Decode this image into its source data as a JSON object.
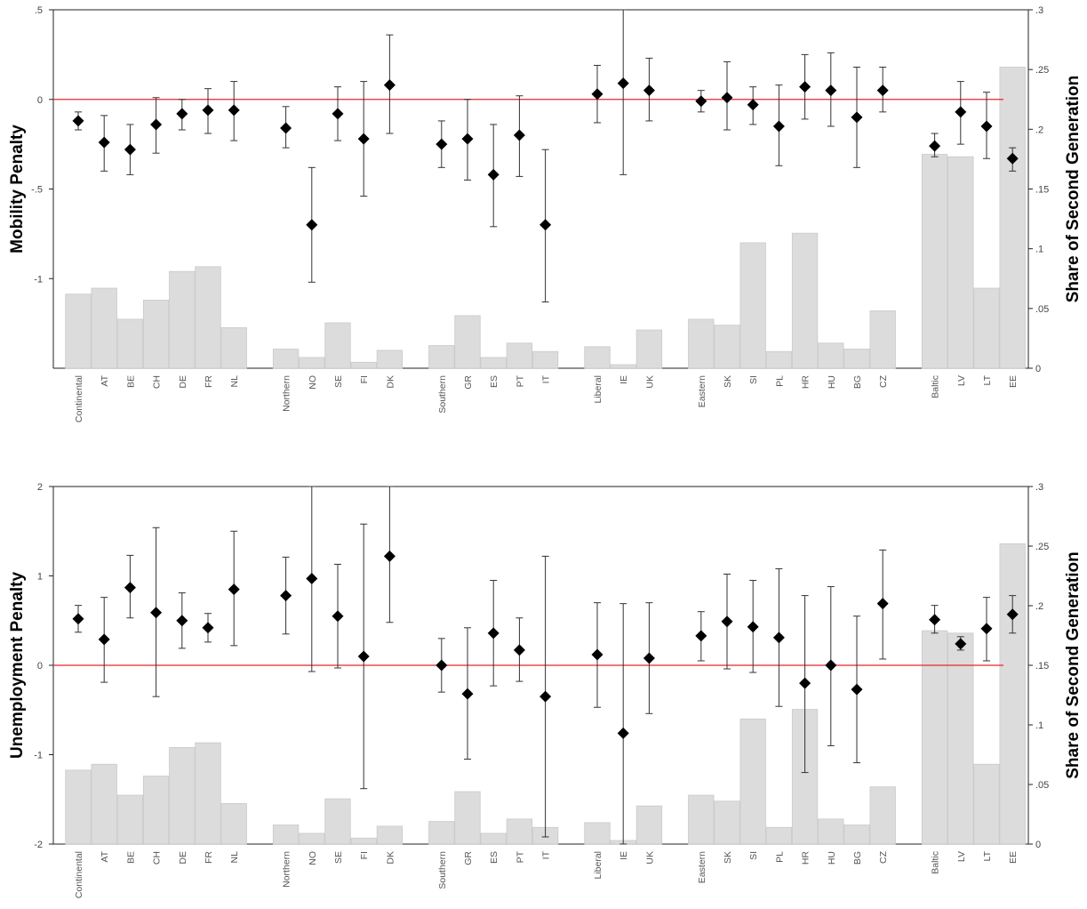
{
  "chart_data": [
    {
      "type": "bar+errorbar",
      "ylabel": "Mobility Penalty",
      "y2label": "Share of Second Generation",
      "ylim": [
        -1.5,
        0.5
      ],
      "y2lim": [
        0,
        0.3
      ],
      "yticks": [
        ".5",
        "0",
        "-.5",
        "-1"
      ],
      "yticks_values": [
        0.5,
        0,
        -0.5,
        -1
      ],
      "y2ticks": [
        ".3",
        ".25",
        ".2",
        ".15",
        ".1",
        ".05",
        "0"
      ],
      "y2ticks_values": [
        0.3,
        0.25,
        0.2,
        0.15,
        0.1,
        0.05,
        0
      ],
      "reference_line": 0,
      "reference_color": "#e8252b",
      "bar_color": "#dcdcdc",
      "marker": "diamond",
      "groups": [
        {
          "categories": [
            "Continental",
            "AT",
            "BE",
            "CH",
            "DE",
            "FR",
            "NL"
          ],
          "share": [
            0.062,
            0.067,
            0.041,
            0.057,
            0.081,
            0.085,
            0.034
          ],
          "est": [
            -0.12,
            -0.24,
            -0.28,
            -0.14,
            -0.08,
            -0.06,
            -0.06
          ],
          "lo": [
            -0.17,
            -0.4,
            -0.42,
            -0.3,
            -0.17,
            -0.19,
            -0.23
          ],
          "hi": [
            -0.07,
            -0.09,
            -0.14,
            0.01,
            0,
            0.06,
            0.1
          ]
        },
        {
          "categories": [
            "Northern",
            "NO",
            "SE",
            "FI",
            "DK"
          ],
          "share": [
            0.016,
            0.009,
            0.038,
            0.005,
            0.015
          ],
          "est": [
            -0.16,
            -0.7,
            -0.08,
            -0.22,
            0.08
          ],
          "lo": [
            -0.27,
            -1.02,
            -0.23,
            -0.54,
            -0.19
          ],
          "hi": [
            -0.04,
            -0.38,
            0.07,
            0.1,
            0.36
          ]
        },
        {
          "categories": [
            "Southern",
            "GR",
            "ES",
            "PT",
            "IT"
          ],
          "share": [
            0.019,
            0.044,
            0.009,
            0.021,
            0.014
          ],
          "est": [
            -0.25,
            -0.22,
            -0.42,
            -0.2,
            -0.7
          ],
          "lo": [
            -0.38,
            -0.45,
            -0.71,
            -0.43,
            -1.13
          ],
          "hi": [
            -0.12,
            0,
            -0.14,
            0.02,
            -0.28
          ]
        },
        {
          "categories": [
            "Liberal",
            "IE",
            "UK"
          ],
          "share": [
            0.018,
            0.003,
            0.032
          ],
          "est": [
            0.03,
            0.09,
            0.05
          ],
          "lo": [
            -0.13,
            -0.42,
            -0.12
          ],
          "hi": [
            0.19,
            0.58,
            0.23
          ]
        },
        {
          "categories": [
            "Eastern",
            "SK",
            "SI",
            "PL",
            "HR",
            "HU",
            "BG",
            "CZ"
          ],
          "share": [
            0.041,
            0.036,
            0.105,
            0.014,
            0.113,
            0.021,
            0.016,
            0.048
          ],
          "est": [
            -0.01,
            0.01,
            -0.03,
            -0.15,
            0.07,
            0.05,
            -0.1,
            0.05
          ],
          "lo": [
            -0.07,
            -0.17,
            -0.14,
            -0.37,
            -0.11,
            -0.15,
            -0.38,
            -0.07
          ],
          "hi": [
            0.05,
            0.21,
            0.07,
            0.08,
            0.25,
            0.26,
            0.18,
            0.18
          ]
        },
        {
          "categories": [
            "Baltic",
            "LV",
            "LT",
            "EE"
          ],
          "share": [
            0.179,
            0.177,
            0.067,
            0.252
          ],
          "est": [
            -0.26,
            -0.07,
            -0.15,
            -0.33
          ],
          "lo": [
            -0.32,
            -0.25,
            -0.33,
            -0.4
          ],
          "hi": [
            -0.19,
            0.1,
            0.04,
            -0.27
          ]
        }
      ]
    },
    {
      "type": "bar+errorbar",
      "ylabel": "Unemployment Penalty",
      "y2label": "Share of Second Generation",
      "ylim": [
        -2,
        2
      ],
      "y2lim": [
        0,
        0.3
      ],
      "yticks": [
        "2",
        "1",
        "0",
        "-1",
        "-2"
      ],
      "yticks_values": [
        2,
        1,
        0,
        -1,
        -2
      ],
      "y2ticks": [
        ".3",
        ".25",
        ".2",
        ".15",
        ".1",
        ".05",
        "0"
      ],
      "y2ticks_values": [
        0.3,
        0.25,
        0.2,
        0.15,
        0.1,
        0.05,
        0
      ],
      "reference_line": 0,
      "reference_color": "#e8252b",
      "bar_color": "#dcdcdc",
      "marker": "diamond",
      "groups": [
        {
          "categories": [
            "Continental",
            "AT",
            "BE",
            "CH",
            "DE",
            "FR",
            "NL"
          ],
          "share": [
            0.062,
            0.067,
            0.041,
            0.057,
            0.081,
            0.085,
            0.034
          ],
          "est": [
            0.52,
            0.29,
            0.87,
            0.59,
            0.5,
            0.42,
            0.85
          ],
          "lo": [
            0.37,
            -0.19,
            0.53,
            -0.35,
            0.19,
            0.26,
            0.22
          ],
          "hi": [
            0.67,
            0.76,
            1.23,
            1.54,
            0.81,
            0.58,
            1.5
          ]
        },
        {
          "categories": [
            "Northern",
            "NO",
            "SE",
            "FI",
            "DK"
          ],
          "share": [
            0.016,
            0.009,
            0.038,
            0.005,
            0.015
          ],
          "est": [
            0.78,
            0.97,
            0.55,
            0.1,
            1.22
          ],
          "lo": [
            0.35,
            -0.07,
            -0.03,
            -1.38,
            0.48
          ],
          "hi": [
            1.21,
            2.0,
            1.13,
            1.58,
            2.0
          ]
        },
        {
          "categories": [
            "Southern",
            "GR",
            "ES",
            "PT",
            "IT"
          ],
          "share": [
            0.019,
            0.044,
            0.009,
            0.021,
            0.014
          ],
          "est": [
            0,
            -0.32,
            0.36,
            0.17,
            -0.35
          ],
          "lo": [
            -0.3,
            -1.05,
            -0.23,
            -0.18,
            -1.92
          ],
          "hi": [
            0.3,
            0.42,
            0.95,
            0.53,
            1.22
          ]
        },
        {
          "categories": [
            "Liberal",
            "IE",
            "UK"
          ],
          "share": [
            0.018,
            0.003,
            0.032
          ],
          "est": [
            0.12,
            -0.76,
            0.08
          ],
          "lo": [
            -0.47,
            -2.0,
            -0.54
          ],
          "hi": [
            0.7,
            0.69,
            0.7
          ]
        },
        {
          "categories": [
            "Eastern",
            "SK",
            "SI",
            "PL",
            "HR",
            "HU",
            "BG",
            "CZ"
          ],
          "share": [
            0.041,
            0.036,
            0.105,
            0.014,
            0.113,
            0.021,
            0.016,
            0.048
          ],
          "est": [
            0.33,
            0.49,
            0.43,
            0.31,
            -0.2,
            0,
            -0.27,
            0.69
          ],
          "lo": [
            0.05,
            -0.04,
            -0.08,
            -0.46,
            -1.2,
            -0.9,
            -1.09,
            0.07
          ],
          "hi": [
            0.6,
            1.02,
            0.95,
            1.08,
            0.78,
            0.88,
            0.55,
            1.29
          ]
        },
        {
          "categories": [
            "Baltic",
            "LV",
            "LT",
            "EE"
          ],
          "share": [
            0.179,
            0.177,
            0.067,
            0.252
          ],
          "est": [
            0.51,
            0.24,
            0.41,
            0.57
          ],
          "lo": [
            0.36,
            0.17,
            0.05,
            0.36
          ],
          "hi": [
            0.67,
            0.32,
            0.76,
            0.78
          ]
        }
      ]
    }
  ]
}
